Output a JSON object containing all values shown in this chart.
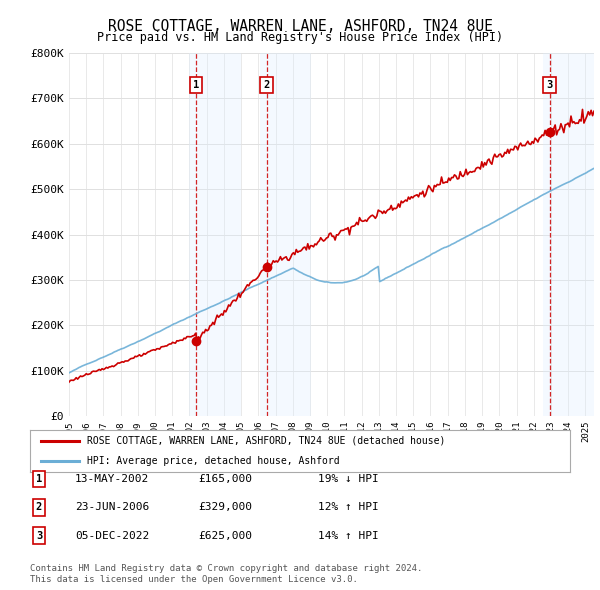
{
  "title": "ROSE COTTAGE, WARREN LANE, ASHFORD, TN24 8UE",
  "subtitle": "Price paid vs. HM Land Registry's House Price Index (HPI)",
  "ylim": [
    0,
    800000
  ],
  "yticks": [
    0,
    100000,
    200000,
    300000,
    400000,
    500000,
    600000,
    700000,
    800000
  ],
  "ytick_labels": [
    "£0",
    "£100K",
    "£200K",
    "£300K",
    "£400K",
    "£500K",
    "£600K",
    "£700K",
    "£800K"
  ],
  "xlim_start": 1995.0,
  "xlim_end": 2025.5,
  "xticks": [
    1995,
    1996,
    1997,
    1998,
    1999,
    2000,
    2001,
    2002,
    2003,
    2004,
    2005,
    2006,
    2007,
    2008,
    2009,
    2010,
    2011,
    2012,
    2013,
    2014,
    2015,
    2016,
    2017,
    2018,
    2019,
    2020,
    2021,
    2022,
    2023,
    2024,
    2025
  ],
  "background_color": "#ffffff",
  "plot_bg_color": "#ffffff",
  "grid_color": "#e0e0e0",
  "hpi_color": "#6baed6",
  "price_color": "#cc0000",
  "transaction_line_color": "#cc0000",
  "transaction_shade_color": "#ddeeff",
  "transactions": [
    {
      "label": "1",
      "date": "13-MAY-2002",
      "year": 2002.37,
      "price": 165000,
      "pct": "19%",
      "dir": "↓"
    },
    {
      "label": "2",
      "date": "23-JUN-2006",
      "year": 2006.48,
      "price": 329000,
      "pct": "12%",
      "dir": "↑"
    },
    {
      "label": "3",
      "date": "05-DEC-2022",
      "year": 2022.92,
      "price": 625000,
      "pct": "14%",
      "dir": "↑"
    }
  ],
  "legend_line1": "ROSE COTTAGE, WARREN LANE, ASHFORD, TN24 8UE (detached house)",
  "legend_line2": "HPI: Average price, detached house, Ashford",
  "footer1": "Contains HM Land Registry data © Crown copyright and database right 2024.",
  "footer2": "This data is licensed under the Open Government Licence v3.0."
}
